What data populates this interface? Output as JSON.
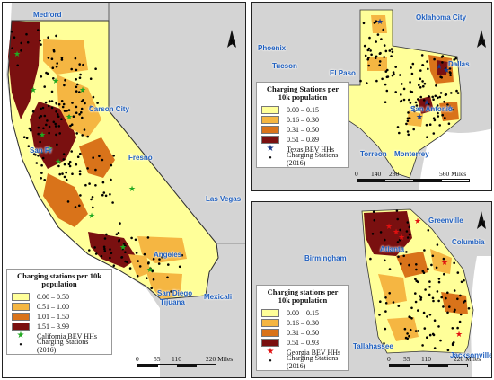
{
  "colors": {
    "class1": "#ffff99",
    "class2": "#f5b642",
    "class3": "#d9731a",
    "class4": "#7a1010",
    "outside": "#d4d4d4",
    "city_label": "#1f5fbf"
  },
  "california": {
    "legend": {
      "title": "Charging stations per 10k population",
      "classes": [
        "0.00 – 0.50",
        "0.51 – 1.00",
        "1.01 – 1.50",
        "1.51 – 3.99"
      ],
      "bev_label": "California BEV HHs",
      "stations_label": "Charging Stations (2016)"
    },
    "cities": [
      "Medford",
      "Carson City",
      "San Fr",
      "Fresno",
      "Las Vegas",
      "Angeles",
      "San Diego",
      "Tijuana",
      "Mexicali"
    ],
    "scale": {
      "ticks": [
        "0",
        "55",
        "110",
        "220 Miles"
      ]
    },
    "north_label": "N",
    "bev_symbol": "star",
    "stations_symbol": "dot"
  },
  "texas": {
    "legend": {
      "title": "Charging Stations per 10k population",
      "classes": [
        "0.00 – 0.15",
        "0.16 – 0.30",
        "0.31 – 0.50",
        "0.51 – 0.89"
      ],
      "bev_label": "Texas BEV HHs",
      "stations_label": "Charging Stations (2016)"
    },
    "cities": [
      "Oklahoma City",
      "Phoenix",
      "Tucson",
      "El Paso",
      "Dallas",
      "San Antonio",
      "Torreon",
      "Monterrey"
    ],
    "scale": {
      "ticks": [
        "0",
        "140",
        "280",
        "560 Miles"
      ]
    },
    "north_label": "N",
    "bev_symbol": "star",
    "stations_symbol": "dot"
  },
  "georgia": {
    "legend": {
      "title": "Charging stations per 10k population",
      "classes": [
        "0.00 – 0.15",
        "0.16 – 0.30",
        "0.31 – 0.50",
        "0.51 – 0.93"
      ],
      "bev_label": "Georgia BEV HHs",
      "stations_label": "Charging Stations (2016)"
    },
    "cities": [
      "Greenville",
      "Atlanta",
      "Columbia",
      "Birmingham",
      "Tallahassee",
      "Jacksonville"
    ],
    "scale": {
      "ticks": [
        "0",
        "55",
        "110",
        "220 Miles"
      ]
    },
    "north_label": "N",
    "bev_symbol": "star",
    "stations_symbol": "dot"
  }
}
